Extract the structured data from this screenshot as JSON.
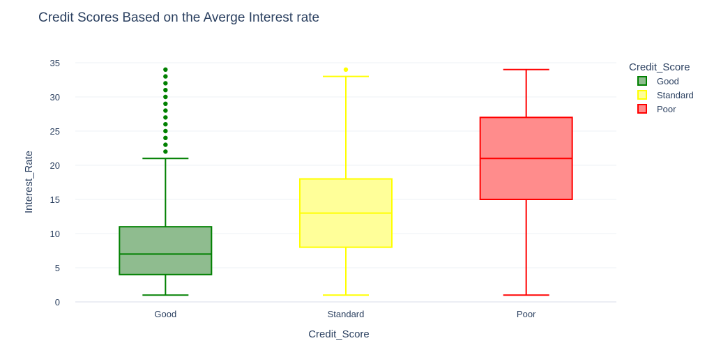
{
  "chart_data": {
    "type": "box",
    "title": "Credit Scores Based on the Averge Interest rate",
    "xlabel": "Credit_Score",
    "ylabel": "Interest_Rate",
    "ylim": [
      0,
      35
    ],
    "yticks": [
      0,
      5,
      10,
      15,
      20,
      25,
      30,
      35
    ],
    "grid": true,
    "legend_title": "Credit_Score",
    "legend_position": "top-right",
    "categories": [
      "Good",
      "Standard",
      "Poor"
    ],
    "series": [
      {
        "name": "Good",
        "color": "#008000",
        "fill": "#8fbc8f",
        "min": 1,
        "q1": 4,
        "median": 7,
        "q3": 11,
        "max": 21,
        "outliers": [
          22,
          23,
          24,
          25,
          26,
          27,
          28,
          29,
          30,
          31,
          32,
          33,
          34
        ]
      },
      {
        "name": "Standard",
        "color": "#ffff00",
        "fill": "#ffff99",
        "min": 1,
        "q1": 8,
        "median": 13,
        "q3": 18,
        "max": 33,
        "outliers": [
          34
        ]
      },
      {
        "name": "Poor",
        "color": "#ff0000",
        "fill": "#ff8c8c",
        "min": 1,
        "q1": 15,
        "median": 21,
        "q3": 27,
        "max": 34,
        "outliers": []
      }
    ]
  }
}
